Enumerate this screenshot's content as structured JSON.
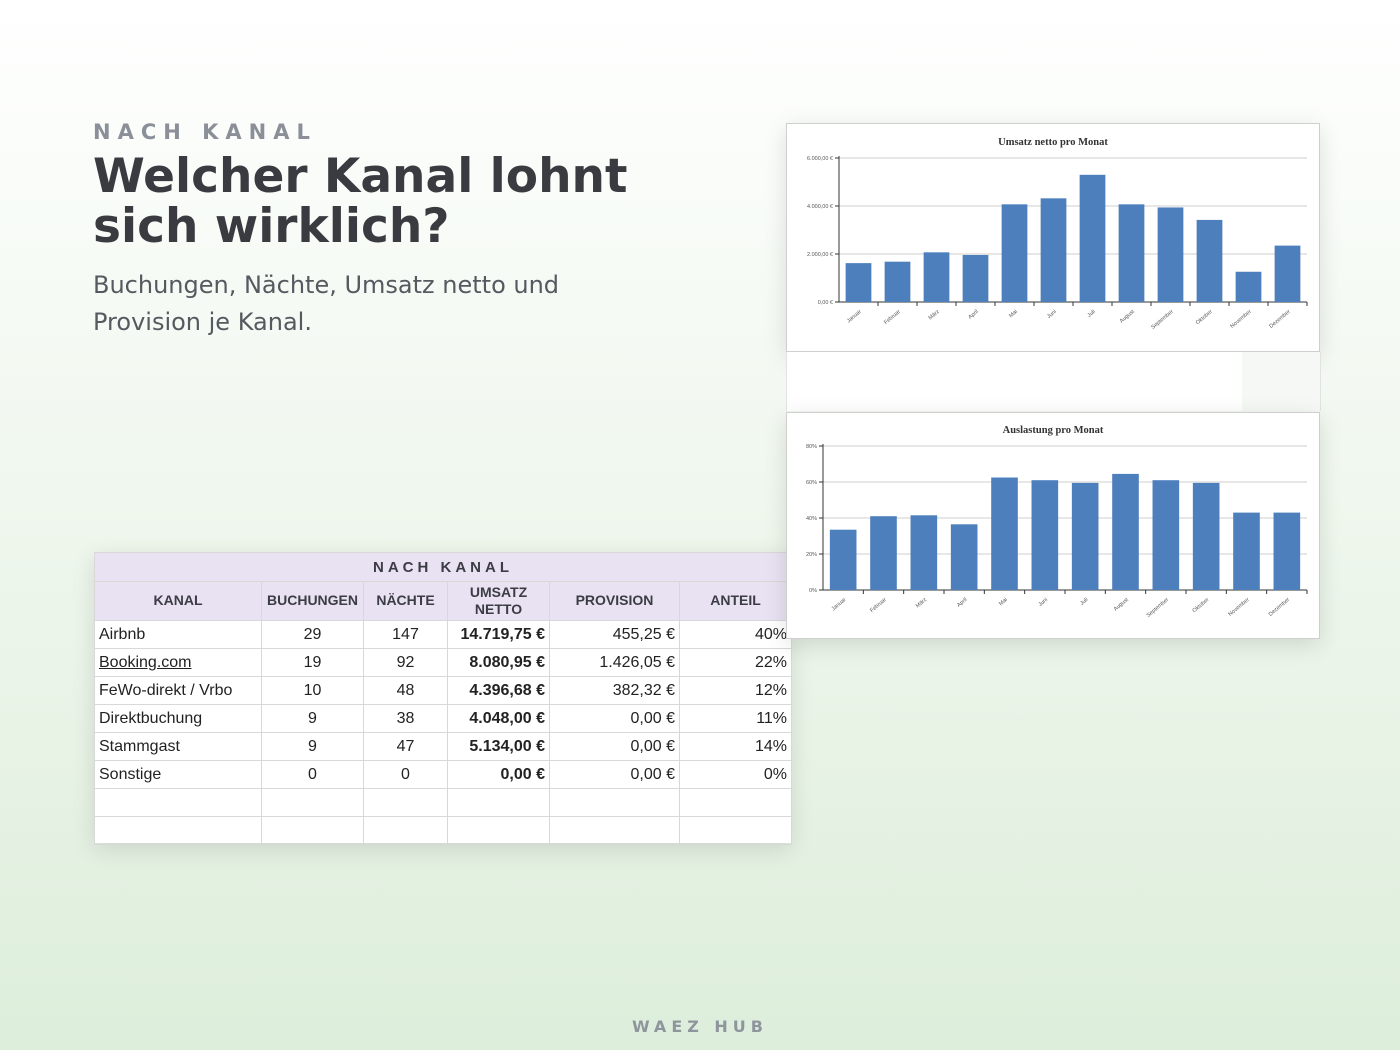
{
  "header": {
    "eyebrow": "NACH KANAL",
    "headline": "Welcher Kanal lohnt sich wirklich?",
    "subline": "Buchungen, Nächte, Umsatz netto und Provision je Kanal."
  },
  "table": {
    "caption": "NACH KANAL",
    "columns": [
      "KANAL",
      "BUCHUNGEN",
      "NÄCHTE",
      "UMSATZ NETTO",
      "PROVISION",
      "ANTEIL"
    ],
    "rows": [
      {
        "kanal": "Airbnb",
        "buchungen": "29",
        "naechte": "147",
        "umsatz": "14.719,75 €",
        "provision": "455,25 €",
        "anteil": "40%"
      },
      {
        "kanal": "Booking.com",
        "buchungen": "19",
        "naechte": "92",
        "umsatz": "8.080,95 €",
        "provision": "1.426,05 €",
        "anteil": "22%"
      },
      {
        "kanal": "FeWo-direkt / Vrbo",
        "buchungen": "10",
        "naechte": "48",
        "umsatz": "4.396,68 €",
        "provision": "382,32 €",
        "anteil": "12%"
      },
      {
        "kanal": "Direktbuchung",
        "buchungen": "9",
        "naechte": "38",
        "umsatz": "4.048,00 €",
        "provision": "0,00 €",
        "anteil": "11%"
      },
      {
        "kanal": "Stammgast",
        "buchungen": "9",
        "naechte": "47",
        "umsatz": "5.134,00 €",
        "provision": "0,00 €",
        "anteil": "14%"
      },
      {
        "kanal": "Sonstige",
        "buchungen": "0",
        "naechte": "0",
        "umsatz": "0,00 €",
        "provision": "0,00 €",
        "anteil": "0%"
      }
    ],
    "empty_rows": 2
  },
  "chart_data": [
    {
      "type": "bar",
      "title": "Umsatz netto pro Monat",
      "categories": [
        "Januar",
        "Februar",
        "März",
        "April",
        "Mai",
        "Juni",
        "Juli",
        "August",
        "September",
        "Oktober",
        "November",
        "Dezember"
      ],
      "values": [
        1620,
        1680,
        2070,
        1960,
        4070,
        4320,
        5300,
        4070,
        3940,
        3420,
        1260,
        2350
      ],
      "ylim": [
        0,
        6000
      ],
      "yticks": [
        0,
        2000,
        4000,
        6000
      ],
      "ytick_labels": [
        "0,00 €",
        "2.000,00 €",
        "4.000,00 €",
        "6.000,00 €"
      ],
      "grid": true,
      "color": "#4e7fbd"
    },
    {
      "type": "bar",
      "title": "Auslastung pro Monat",
      "categories": [
        "Januar",
        "Februar",
        "März",
        "April",
        "Mai",
        "Juni",
        "Juli",
        "August",
        "September",
        "Oktober",
        "November",
        "Dezember"
      ],
      "values": [
        33.5,
        41,
        41.5,
        36.5,
        62.5,
        61,
        59.5,
        64.5,
        61,
        59.5,
        43,
        43
      ],
      "ylim": [
        0,
        80
      ],
      "yticks": [
        0,
        20,
        40,
        60,
        80
      ],
      "ytick_labels": [
        "0%",
        "20%",
        "40%",
        "60%",
        "80%"
      ],
      "grid": true,
      "color": "#4e7fbd"
    }
  ],
  "footer": {
    "brand": "WAEZ HUB"
  }
}
